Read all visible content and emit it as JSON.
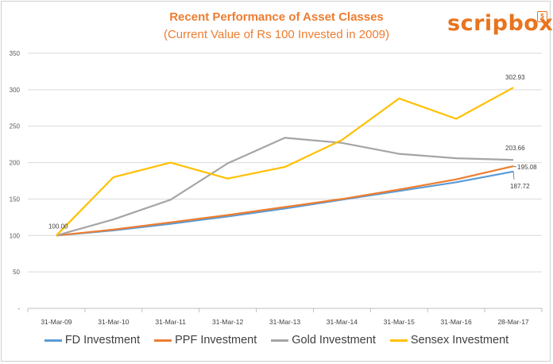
{
  "chart_data": {
    "type": "line",
    "title": "Recent Performance of Asset Classes",
    "subtitle": "(Current Value of Rs 100 Invested in 2009)",
    "categories": [
      "31-Mar-09",
      "31-Mar-10",
      "31-Mar-11",
      "31-Mar-12",
      "31-Mar-13",
      "31-Mar-14",
      "31-Mar-15",
      "31-Mar-16",
      "28-Mar-17"
    ],
    "series": [
      {
        "name": "FD Investment",
        "color": "#5b9bd5",
        "values": [
          100,
          107,
          116,
          126,
          137,
          149,
          161,
          173,
          187.72
        ]
      },
      {
        "name": "PPF Investment",
        "color": "#ed7d31",
        "values": [
          100,
          108,
          118,
          128,
          139,
          150,
          163,
          177,
          195.08
        ]
      },
      {
        "name": "Gold Investment",
        "color": "#a5a5a5",
        "values": [
          100,
          122,
          149,
          199,
          234,
          227,
          212,
          206,
          203.66
        ]
      },
      {
        "name": "Sensex Investment",
        "color": "#ffc000",
        "values": [
          100,
          180,
          200,
          178,
          194,
          231,
          288,
          260,
          302.93
        ]
      }
    ],
    "data_labels": [
      {
        "series": 0,
        "index": 0,
        "text": "100.00"
      },
      {
        "series": 3,
        "index": 8,
        "text": "302.93"
      },
      {
        "series": 2,
        "index": 8,
        "text": "203.66"
      },
      {
        "series": 1,
        "index": 8,
        "text": "195.08"
      },
      {
        "series": 0,
        "index": 8,
        "text": "187.72"
      }
    ],
    "yticks": [
      "-",
      "50",
      "100",
      "150",
      "200",
      "250",
      "300",
      "350"
    ],
    "ylim": [
      0,
      350
    ],
    "grid": true,
    "legend_position": "bottom"
  },
  "brand": {
    "logo_text": "scripbox",
    "logo_badge": "$",
    "color": "#e8741e"
  }
}
